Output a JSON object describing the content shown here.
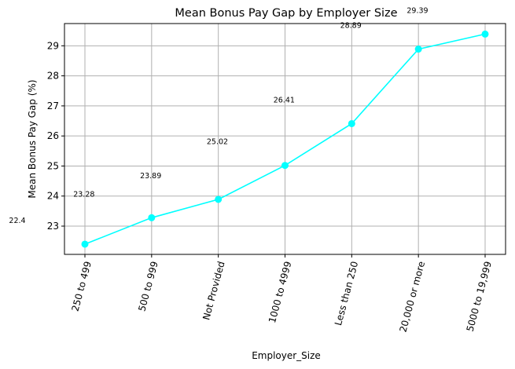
{
  "chart_data": {
    "type": "line",
    "title": "Mean Bonus Pay Gap by Employer Size",
    "xlabel": "Employer_Size",
    "ylabel": "Mean Bonus Pay Gap (%)",
    "categories": [
      "250 to 499",
      "500 to 999",
      "Not Provided",
      "1000 to 4999",
      "Less than 250",
      "20,000 or more",
      "5000 to 19,999"
    ],
    "values": [
      22.4,
      23.28,
      23.89,
      25.02,
      26.41,
      28.89,
      29.39
    ],
    "data_labels": [
      "22.4",
      "23.28",
      "23.89",
      "25.02",
      "26.41",
      "28.89",
      "29.39"
    ],
    "ylim": [
      22.06,
      29.74
    ],
    "yticks": [
      23,
      24,
      25,
      26,
      27,
      28,
      29
    ],
    "grid": true,
    "color": "#00FFFF"
  }
}
